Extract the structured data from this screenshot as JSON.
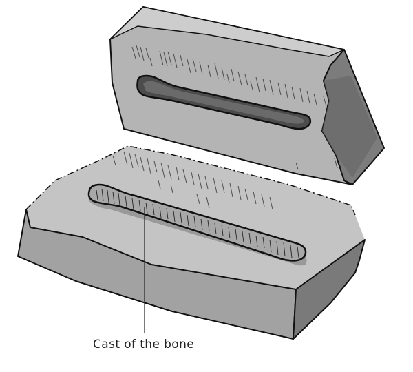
{
  "figure": {
    "callout_label": "Cast of the bone"
  },
  "colors": {
    "stone_top": "#c2c2c2",
    "stone_front": "#9c9c9c",
    "stone_side": "#7a7a7a",
    "stone_dark": "#5e5e5e",
    "groove_fill": "#4a4a4a",
    "cast_fill": "#a8a8a8",
    "outline": "#111111"
  }
}
